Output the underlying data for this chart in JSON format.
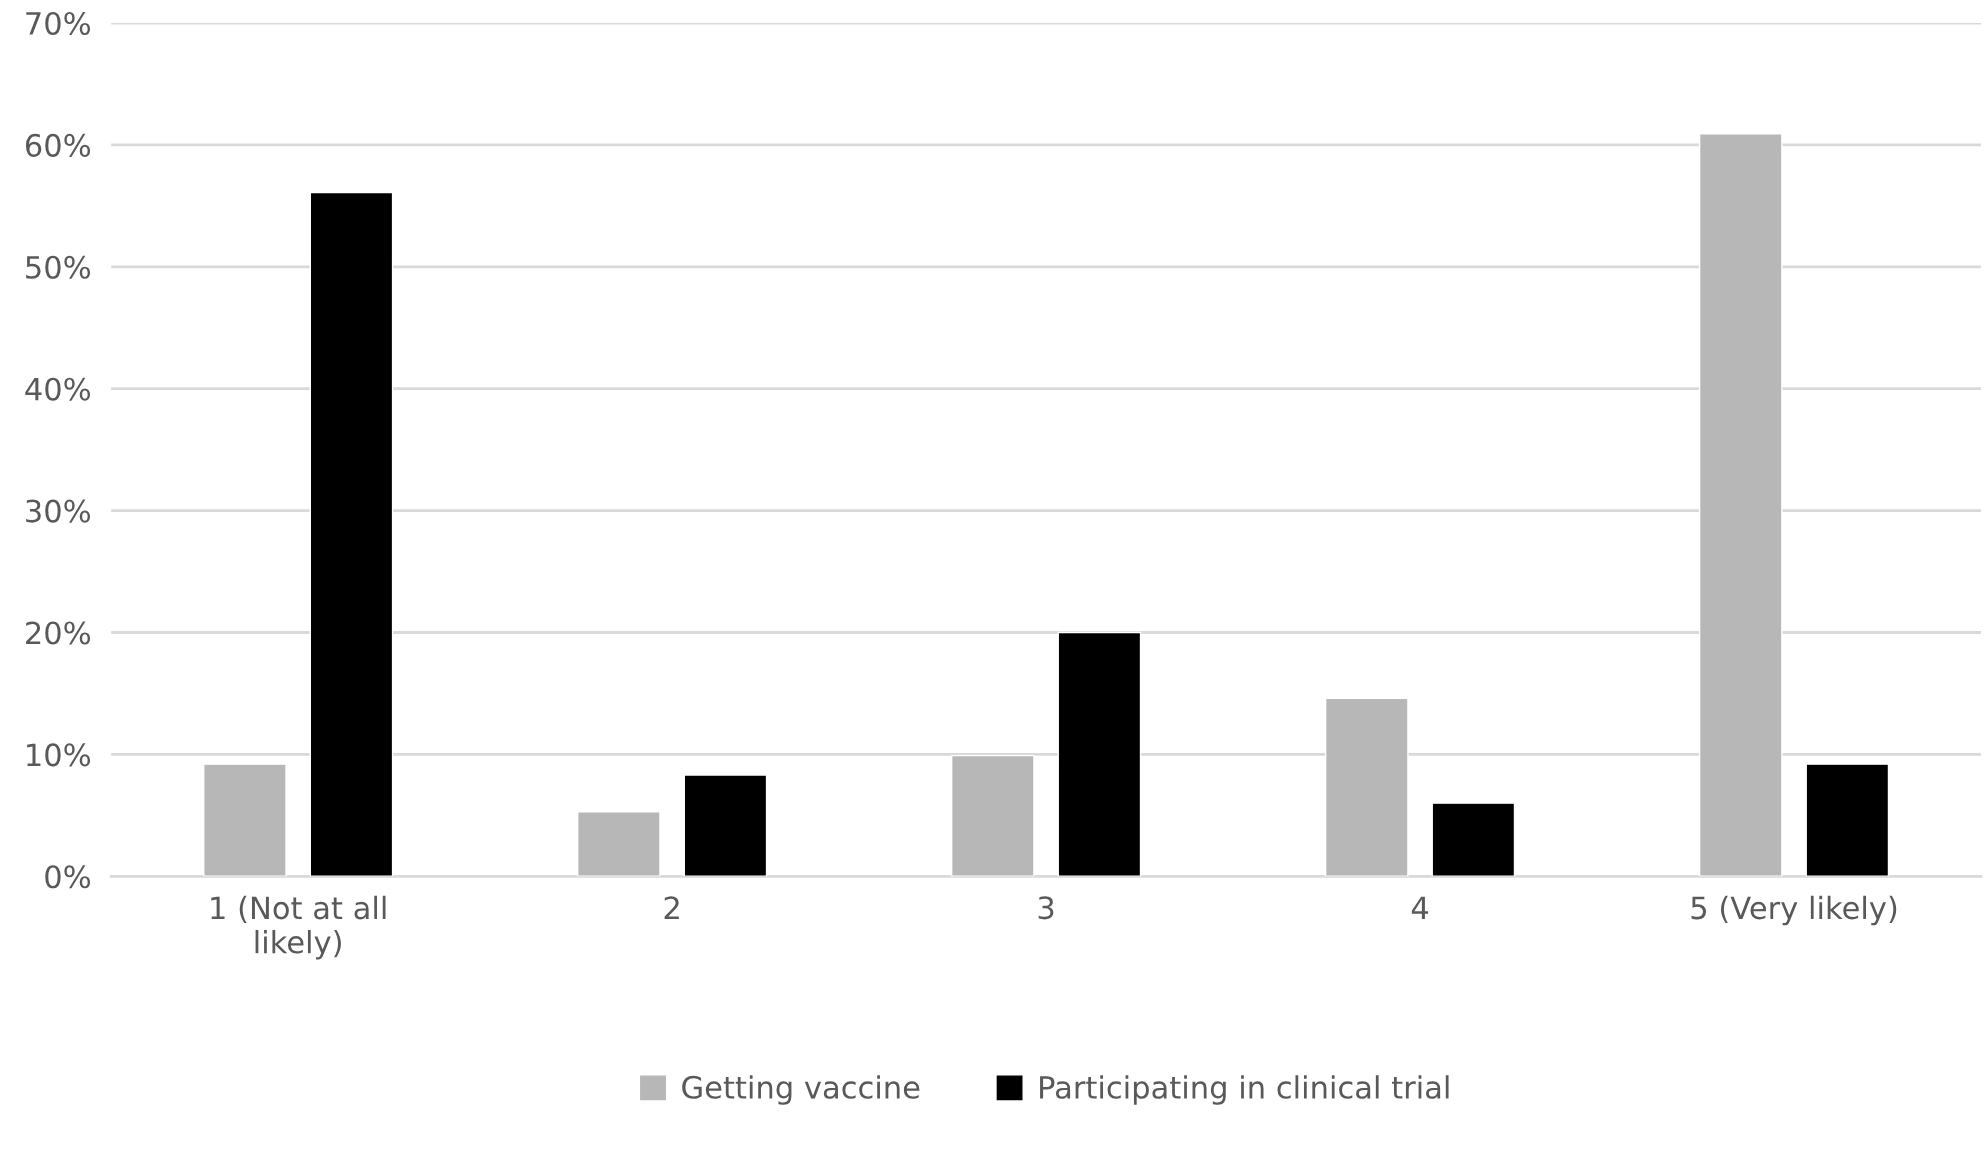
{
  "chart_data": {
    "type": "bar",
    "categories": [
      "1 (Not at all\nlikely)",
      "2",
      "3",
      "4",
      "5 (Very likely)"
    ],
    "series": [
      {
        "name": "Getting vaccine",
        "color": "#b7b7b7",
        "values": [
          9.2,
          5.3,
          9.9,
          14.6,
          60.9
        ]
      },
      {
        "name": "Participating in clinical trial",
        "color": "#000000",
        "values": [
          56.1,
          8.3,
          20.0,
          6.0,
          9.2
        ]
      }
    ],
    "ylim": [
      0,
      70
    ],
    "yticks": [
      {
        "value": 0,
        "label": "0%"
      },
      {
        "value": 10,
        "label": "10%"
      },
      {
        "value": 20,
        "label": "20%"
      },
      {
        "value": 30,
        "label": "30%"
      },
      {
        "value": 40,
        "label": "40%"
      },
      {
        "value": 50,
        "label": "50%"
      },
      {
        "value": 60,
        "label": "60%"
      },
      {
        "value": 70,
        "label": "70%"
      }
    ],
    "grid": "y",
    "legend": "bottom"
  }
}
